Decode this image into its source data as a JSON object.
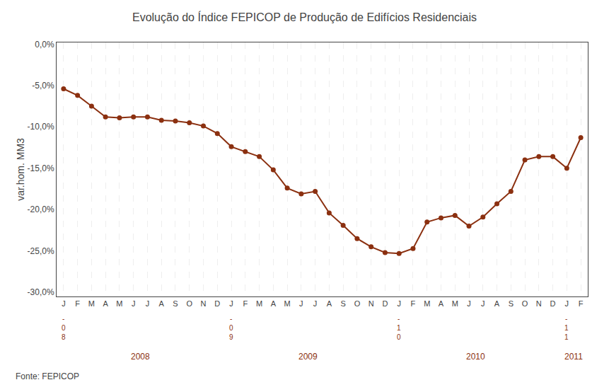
{
  "chart_data": {
    "type": "line",
    "title": "Evolução do Índice FEPICOP de Produção de Edifícios Residenciais",
    "ylabel": "var.hom. MM3",
    "source": "Fonte: FEPICOP",
    "color": "#8B3010",
    "marker": "circle",
    "grid": "x",
    "categories": [
      "J",
      "F",
      "M",
      "A",
      "M",
      "J",
      "J",
      "A",
      "S",
      "O",
      "N",
      "D",
      "J",
      "F",
      "M",
      "A",
      "M",
      "J",
      "J",
      "A",
      "S",
      "O",
      "N",
      "D",
      "J",
      "F",
      "M",
      "A",
      "M",
      "J",
      "J",
      "A",
      "S",
      "O",
      "N",
      "D",
      "J",
      "F"
    ],
    "groups": [
      {
        "label": "2008",
        "start": 0,
        "annotation": "-\n0\n8"
      },
      {
        "label": "2009",
        "start": 12,
        "annotation": "-\n0\n9"
      },
      {
        "label": "2010",
        "start": 24,
        "annotation": "-\n1\n0"
      },
      {
        "label": "2011",
        "start": 36,
        "annotation": "-\n1\n1"
      }
    ],
    "values": [
      -0.054,
      -0.062,
      -0.075,
      -0.088,
      -0.089,
      -0.088,
      -0.088,
      -0.092,
      -0.093,
      -0.095,
      -0.099,
      -0.108,
      -0.124,
      -0.13,
      -0.136,
      -0.152,
      -0.174,
      -0.181,
      -0.178,
      -0.204,
      -0.219,
      -0.235,
      -0.245,
      -0.252,
      -0.253,
      -0.247,
      -0.215,
      -0.21,
      -0.207,
      -0.22,
      -0.209,
      -0.193,
      -0.178,
      -0.14,
      -0.136,
      -0.136,
      -0.15,
      -0.113
    ],
    "ylim": [
      -0.305,
      0.002
    ],
    "yticks": [
      {
        "value": 0.0,
        "label": "0,0%"
      },
      {
        "value": -0.05,
        "label": "-5,0%"
      },
      {
        "value": -0.1,
        "label": "-10,0%"
      },
      {
        "value": -0.15,
        "label": "-15,0%"
      },
      {
        "value": -0.2,
        "label": "-20,0%"
      },
      {
        "value": -0.25,
        "label": "-25,0%"
      },
      {
        "value": -0.3,
        "label": "-30,0%"
      }
    ]
  }
}
